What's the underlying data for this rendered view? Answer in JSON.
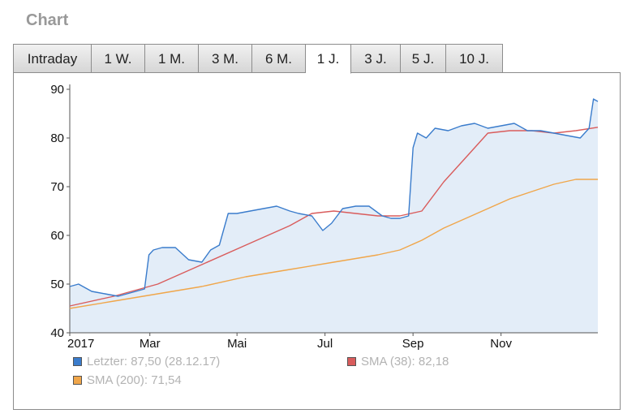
{
  "header": {
    "title": "Chart"
  },
  "tabs": [
    {
      "label": "Intraday",
      "active": false
    },
    {
      "label": "1 W.",
      "active": false
    },
    {
      "label": "1 M.",
      "active": false
    },
    {
      "label": "3 M.",
      "active": false
    },
    {
      "label": "6 M.",
      "active": false
    },
    {
      "label": "1 J.",
      "active": true
    },
    {
      "label": "3 J.",
      "active": false
    },
    {
      "label": "5 J.",
      "active": false
    },
    {
      "label": "10 J.",
      "active": false
    }
  ],
  "legend": {
    "last": "Letzter: 87,50 (28.12.17)",
    "sma38": "SMA (38): 82,18",
    "sma200": "SMA (200): 71,54"
  },
  "colors": {
    "last": "#3a7ccc",
    "area": "#e3edf8",
    "sma38": "#d95c5c",
    "sma200": "#f0a64a"
  },
  "chart_data": {
    "type": "line",
    "ylim": [
      40,
      90
    ],
    "yticks": [
      "40",
      "50",
      "60",
      "70",
      "80",
      "90"
    ],
    "xticks": [
      {
        "label": "2017",
        "t": 0.0
      },
      {
        "label": "Mar",
        "t": 1.82
      },
      {
        "label": "Mai",
        "t": 3.8
      },
      {
        "label": "Jul",
        "t": 5.8
      },
      {
        "label": "Sep",
        "t": 7.8
      },
      {
        "label": "Nov",
        "t": 9.8
      }
    ],
    "series": [
      {
        "name": "Letzter",
        "x": [
          0,
          0.2,
          0.5,
          0.8,
          1.1,
          1.3,
          1.5,
          1.7,
          1.8,
          1.9,
          2.1,
          2.4,
          2.7,
          3.0,
          3.2,
          3.4,
          3.6,
          3.8,
          4.1,
          4.4,
          4.7,
          5.0,
          5.2,
          5.5,
          5.75,
          5.95,
          6.2,
          6.5,
          6.8,
          7.1,
          7.3,
          7.5,
          7.7,
          7.8,
          7.9,
          8.1,
          8.3,
          8.6,
          8.9,
          9.2,
          9.5,
          9.8,
          10.1,
          10.4,
          10.7,
          11.0,
          11.3,
          11.6,
          11.8,
          11.9,
          12.0
        ],
        "values": [
          49.5,
          50,
          48.5,
          48,
          47.5,
          48,
          48.5,
          49,
          56,
          57,
          57.5,
          57.5,
          55,
          54.5,
          57,
          58,
          64.5,
          64.5,
          65,
          65.5,
          66,
          65,
          64.5,
          64,
          61,
          62.5,
          65.5,
          66,
          66,
          64,
          63.5,
          63.5,
          64,
          78,
          81,
          80,
          82,
          81.5,
          82.5,
          83,
          82,
          82.5,
          83,
          81.5,
          81.5,
          81,
          80.5,
          80,
          82,
          88,
          87.5
        ]
      },
      {
        "name": "SMA (38)",
        "x": [
          0,
          1,
          2,
          3,
          4,
          5,
          5.5,
          6,
          6.5,
          7,
          7.5,
          8,
          8.5,
          9,
          9.5,
          10,
          10.5,
          11,
          11.5,
          12
        ],
        "values": [
          45.5,
          47.5,
          50,
          54,
          58,
          62,
          64.5,
          65,
          64.5,
          64,
          64,
          65,
          71,
          76,
          81,
          81.5,
          81.5,
          81,
          81.5,
          82.2
        ]
      },
      {
        "name": "SMA (200)",
        "x": [
          0,
          1,
          2,
          3,
          4,
          5,
          6,
          7,
          7.5,
          8,
          8.5,
          9,
          9.5,
          10,
          10.5,
          11,
          11.5,
          12
        ],
        "values": [
          45,
          46.5,
          48,
          49.5,
          51.5,
          53,
          54.5,
          56,
          57,
          59,
          61.5,
          63.5,
          65.5,
          67.5,
          69,
          70.5,
          71.5,
          71.5
        ]
      }
    ]
  }
}
